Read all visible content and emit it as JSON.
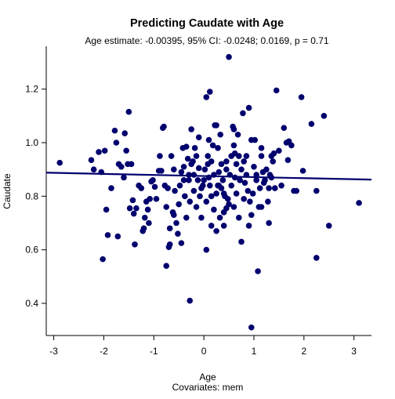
{
  "chart_data": {
    "type": "scatter",
    "title": "Predicting Caudate with Age",
    "subtitle": "Age estimate: -0.00395, 95% CI: -0.0248; 0.0169, p = 0.71",
    "xlabel": "Age",
    "xlabel_sub": "Covariates: mem",
    "ylabel": "Caudate",
    "xlim": [
      -3.15,
      3.35
    ],
    "ylim": [
      0.28,
      1.36
    ],
    "xticks": [
      -3,
      -2,
      -1,
      0,
      1,
      2,
      3
    ],
    "yticks": [
      0.4,
      0.6,
      0.8,
      1.0,
      1.2
    ],
    "ytick_labels": [
      "0.4",
      "0.6",
      "0.8",
      "1.0",
      "1.2"
    ],
    "grid": false,
    "colors": {
      "points": "#00006e",
      "line": "#00006e"
    },
    "fit_line": {
      "x": [
        -3.15,
        3.35
      ],
      "y": [
        0.888,
        0.862
      ]
    },
    "points": [
      [
        -2.88,
        0.925
      ],
      [
        -2.25,
        0.935
      ],
      [
        -2.2,
        0.9
      ],
      [
        -2.1,
        0.965
      ],
      [
        -2.05,
        0.89
      ],
      [
        -1.98,
        0.97
      ],
      [
        -2.02,
        0.565
      ],
      [
        -1.95,
        0.75
      ],
      [
        -1.92,
        0.655
      ],
      [
        -1.85,
        0.83
      ],
      [
        -1.78,
        1.045
      ],
      [
        -1.75,
        1.0
      ],
      [
        -1.72,
        0.65
      ],
      [
        -1.7,
        0.92
      ],
      [
        -1.65,
        0.91
      ],
      [
        -1.6,
        0.87
      ],
      [
        -1.58,
        1.035
      ],
      [
        -1.55,
        0.97
      ],
      [
        -1.52,
        0.92
      ],
      [
        -1.5,
        1.115
      ],
      [
        -1.48,
        0.755
      ],
      [
        -1.45,
        0.92
      ],
      [
        -1.42,
        0.785
      ],
      [
        -1.4,
        0.735
      ],
      [
        -1.38,
        0.62
      ],
      [
        -1.35,
        0.755
      ],
      [
        -1.3,
        0.84
      ],
      [
        -1.25,
        0.83
      ],
      [
        -1.22,
        0.67
      ],
      [
        -1.2,
        0.68
      ],
      [
        -1.18,
        0.72
      ],
      [
        -1.15,
        0.78
      ],
      [
        -1.12,
        0.75
      ],
      [
        -1.1,
        0.7
      ],
      [
        -1.08,
        0.79
      ],
      [
        -1.05,
        0.855
      ],
      [
        -1.02,
        0.86
      ],
      [
        -0.98,
        0.835
      ],
      [
        -0.95,
        0.79
      ],
      [
        -0.9,
        0.895
      ],
      [
        -0.88,
        0.95
      ],
      [
        -0.85,
        0.895
      ],
      [
        -0.82,
        1.055
      ],
      [
        -0.8,
        1.06
      ],
      [
        -0.78,
        0.84
      ],
      [
        -0.75,
        0.76
      ],
      [
        -0.72,
        0.83
      ],
      [
        -0.7,
        0.61
      ],
      [
        -0.68,
        0.68
      ],
      [
        -0.65,
        0.95
      ],
      [
        -0.62,
        0.74
      ],
      [
        -0.6,
        0.73
      ],
      [
        -0.58,
        0.82
      ],
      [
        -0.55,
        0.7
      ],
      [
        -0.52,
        0.66
      ],
      [
        -0.5,
        0.77
      ],
      [
        -0.48,
        0.84
      ],
      [
        -0.45,
        0.89
      ],
      [
        -0.42,
        0.98
      ],
      [
        -0.4,
        0.91
      ],
      [
        -0.38,
        0.8
      ],
      [
        -0.35,
        0.985
      ],
      [
        -0.32,
        0.94
      ],
      [
        -0.3,
        0.86
      ],
      [
        -0.28,
        0.78
      ],
      [
        -0.25,
        0.92
      ],
      [
        -0.22,
        0.93
      ],
      [
        -0.2,
        0.88
      ],
      [
        -0.18,
        0.98
      ],
      [
        -0.15,
        0.95
      ],
      [
        -0.12,
        0.86
      ],
      [
        -0.1,
        0.905
      ],
      [
        -0.08,
        0.8
      ],
      [
        -0.05,
        0.83
      ],
      [
        -0.02,
        0.84
      ],
      [
        0.0,
        0.86
      ],
      [
        0.02,
        0.9
      ],
      [
        0.05,
        0.78
      ],
      [
        0.08,
        0.95
      ],
      [
        0.1,
        1.01
      ],
      [
        0.12,
        0.84
      ],
      [
        0.15,
        0.93
      ],
      [
        0.18,
        0.99
      ],
      [
        0.2,
        0.88
      ],
      [
        0.22,
        1.065
      ],
      [
        0.25,
        1.065
      ],
      [
        0.28,
        0.84
      ],
      [
        0.3,
        0.89
      ],
      [
        0.32,
        0.72
      ],
      [
        0.35,
        0.83
      ],
      [
        0.38,
        0.86
      ],
      [
        0.4,
        0.74
      ],
      [
        0.42,
        0.8
      ],
      [
        0.45,
        0.9
      ],
      [
        0.48,
        0.79
      ],
      [
        0.5,
        1.32
      ],
      [
        0.52,
        0.88
      ],
      [
        0.55,
        0.95
      ],
      [
        0.58,
        1.06
      ],
      [
        0.6,
        0.99
      ],
      [
        0.62,
        0.96
      ],
      [
        0.65,
        0.92
      ],
      [
        0.68,
        1.03
      ],
      [
        0.7,
        0.95
      ],
      [
        0.72,
        0.86
      ],
      [
        0.75,
        0.9
      ],
      [
        0.78,
        1.11
      ],
      [
        0.8,
        0.79
      ],
      [
        0.82,
        0.85
      ],
      [
        0.85,
        0.95
      ],
      [
        0.88,
        0.82
      ],
      [
        0.9,
        0.69
      ],
      [
        0.92,
        0.78
      ],
      [
        0.95,
        0.31
      ],
      [
        0.98,
        0.81
      ],
      [
        1.0,
        0.91
      ],
      [
        1.02,
        1.01
      ],
      [
        1.05,
        0.88
      ],
      [
        1.08,
        0.52
      ],
      [
        1.1,
        0.76
      ],
      [
        1.12,
        0.83
      ],
      [
        1.15,
        0.95
      ],
      [
        1.18,
        0.89
      ],
      [
        1.2,
        0.85
      ],
      [
        1.22,
        0.86
      ],
      [
        1.25,
        0.9
      ],
      [
        1.28,
        0.78
      ],
      [
        1.3,
        0.7
      ],
      [
        1.32,
        0.88
      ],
      [
        1.35,
        0.95
      ],
      [
        1.38,
        0.93
      ],
      [
        1.4,
        0.96
      ],
      [
        1.42,
        0.83
      ],
      [
        1.45,
        1.195
      ],
      [
        1.5,
        0.97
      ],
      [
        1.55,
        0.84
      ],
      [
        1.6,
        1.055
      ],
      [
        1.65,
        1.0
      ],
      [
        1.68,
        0.935
      ],
      [
        1.7,
        1.005
      ],
      [
        1.75,
        0.99
      ],
      [
        1.8,
        0.82
      ],
      [
        1.85,
        0.82
      ],
      [
        1.95,
        1.17
      ],
      [
        1.98,
        0.895
      ],
      [
        2.15,
        1.07
      ],
      [
        2.25,
        0.82
      ],
      [
        2.25,
        0.57
      ],
      [
        2.4,
        1.1
      ],
      [
        2.5,
        0.69
      ],
      [
        3.1,
        0.775
      ],
      [
        -0.75,
        0.54
      ],
      [
        -0.28,
        0.41
      ],
      [
        -0.68,
        0.62
      ],
      [
        -0.45,
        0.625
      ],
      [
        0.05,
        0.6
      ],
      [
        0.25,
        0.67
      ],
      [
        0.75,
        0.63
      ],
      [
        0.95,
        0.73
      ],
      [
        0.45,
        0.755
      ],
      [
        0.4,
        0.81
      ],
      [
        0.6,
        0.76
      ],
      [
        0.65,
        0.81
      ],
      [
        0.85,
        0.88
      ],
      [
        0.8,
        0.93
      ],
      [
        1.3,
        0.83
      ],
      [
        0.12,
        1.19
      ],
      [
        -0.25,
        1.05
      ],
      [
        -0.1,
        1.02
      ],
      [
        0.6,
        1.05
      ],
      [
        0.95,
        1.01
      ],
      [
        0.28,
        0.98
      ],
      [
        0.05,
        1.17
      ],
      [
        -0.4,
        0.86
      ],
      [
        0.35,
        0.92
      ],
      [
        0.15,
        0.8
      ],
      [
        -0.05,
        0.72
      ],
      [
        0.55,
        0.84
      ],
      [
        1.15,
        0.98
      ],
      [
        1.35,
        0.87
      ],
      [
        0.7,
        0.72
      ],
      [
        0.3,
        0.84
      ],
      [
        -0.2,
        0.82
      ],
      [
        0.45,
        0.93
      ],
      [
        0.1,
        0.87
      ],
      [
        0.25,
        0.81
      ],
      [
        -0.6,
        0.9
      ],
      [
        -0.15,
        0.76
      ],
      [
        0.2,
        0.75
      ],
      [
        0.5,
        0.77
      ],
      [
        0.4,
        0.69
      ],
      [
        0.15,
        0.69
      ],
      [
        -0.35,
        0.72
      ],
      [
        0.9,
        1.13
      ],
      [
        1.05,
        0.86
      ],
      [
        1.15,
        0.76
      ],
      [
        -0.3,
        0.88
      ],
      [
        0.62,
        0.87
      ],
      [
        0.33,
        1.03
      ],
      [
        0.08,
        0.92
      ]
    ]
  }
}
